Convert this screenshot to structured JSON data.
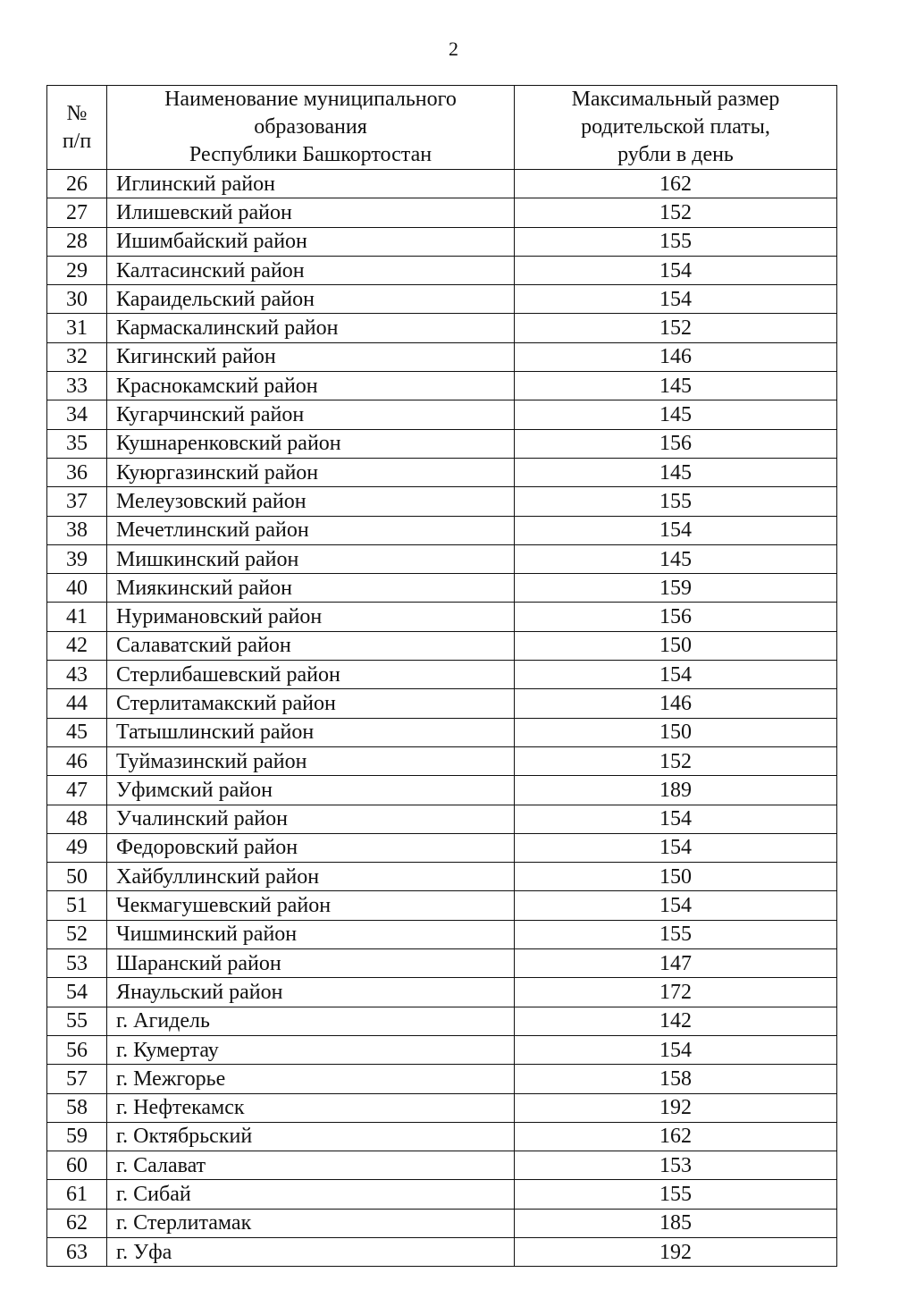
{
  "page_number": "2",
  "table": {
    "header": [
      [
        "№",
        "п/п"
      ],
      [
        "Наименование муниципального",
        "образования",
        "Республики Башкортостан"
      ],
      [
        "Максимальный размер",
        "родительской платы,",
        "рубли в день"
      ]
    ],
    "rows": [
      [
        26,
        "Иглинский район",
        162
      ],
      [
        27,
        "Илишевский район",
        152
      ],
      [
        28,
        "Ишимбайский район",
        155
      ],
      [
        29,
        "Калтасинский район",
        154
      ],
      [
        30,
        "Караидельский район",
        154
      ],
      [
        31,
        "Кармаскалинский район",
        152
      ],
      [
        32,
        "Кигинский район",
        146
      ],
      [
        33,
        "Краснокамский район",
        145
      ],
      [
        34,
        "Кугарчинский район",
        145
      ],
      [
        35,
        "Кушнаренковский район",
        156
      ],
      [
        36,
        "Куюргазинский район",
        145
      ],
      [
        37,
        "Мелеузовский район",
        155
      ],
      [
        38,
        "Мечетлинский район",
        154
      ],
      [
        39,
        "Мишкинский район",
        145
      ],
      [
        40,
        "Миякинский район",
        159
      ],
      [
        41,
        "Нуримановский район",
        156
      ],
      [
        42,
        "Салаватский район",
        150
      ],
      [
        43,
        "Стерлибашевский район",
        154
      ],
      [
        44,
        "Стерлитамакский район",
        146
      ],
      [
        45,
        "Татышлинский район",
        150
      ],
      [
        46,
        "Туймазинский район",
        152
      ],
      [
        47,
        "Уфимский район",
        189
      ],
      [
        48,
        "Учалинский район",
        154
      ],
      [
        49,
        "Федоровский район",
        154
      ],
      [
        50,
        "Хайбуллинский район",
        150
      ],
      [
        51,
        "Чекмагушевский район",
        154
      ],
      [
        52,
        "Чишминский район",
        155
      ],
      [
        53,
        "Шаранский район",
        147
      ],
      [
        54,
        "Янаульский район",
        172
      ],
      [
        55,
        "г. Агидель",
        142
      ],
      [
        56,
        "г. Кумертау",
        154
      ],
      [
        57,
        "г. Межгорье",
        158
      ],
      [
        58,
        "г. Нефтекамск",
        192
      ],
      [
        59,
        "г. Октябрьский",
        162
      ],
      [
        60,
        "г. Салават",
        153
      ],
      [
        61,
        "г. Сибай",
        155
      ],
      [
        62,
        "г. Стерлитамак",
        185
      ],
      [
        63,
        "г. Уфа",
        192
      ]
    ]
  }
}
